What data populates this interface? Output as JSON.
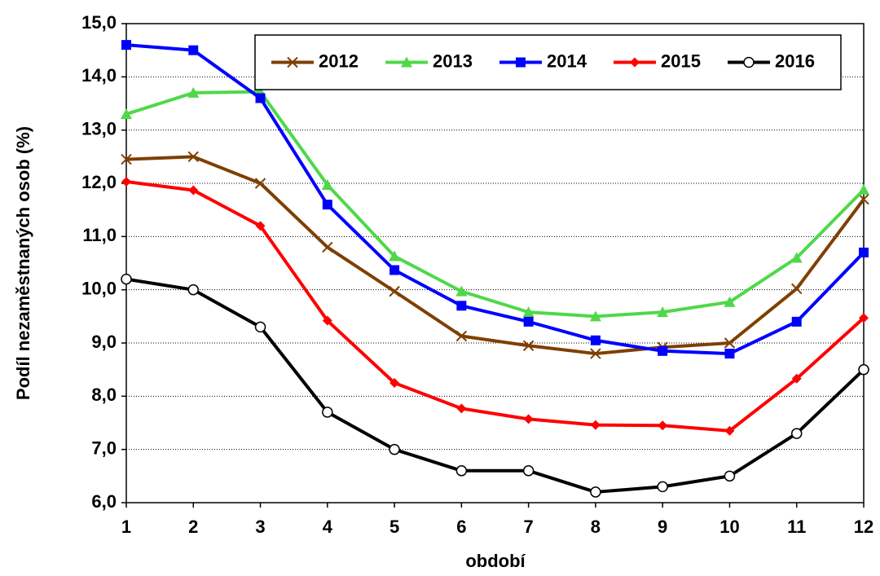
{
  "chart_data": {
    "type": "line",
    "x_label": "období",
    "y_label": "Podíl nezaměstnaných osob (%)",
    "x": [
      1,
      2,
      3,
      4,
      5,
      6,
      7,
      8,
      9,
      10,
      11,
      12
    ],
    "xlim": [
      1,
      12
    ],
    "xticks": [
      1,
      2,
      3,
      4,
      5,
      6,
      7,
      8,
      9,
      10,
      11,
      12
    ],
    "ylim": [
      6,
      15
    ],
    "yticks": [
      {
        "value": 6,
        "label": "6,0"
      },
      {
        "value": 7,
        "label": "7,0"
      },
      {
        "value": 8,
        "label": "8,0"
      },
      {
        "value": 9,
        "label": "9,0"
      },
      {
        "value": 10,
        "label": "10,0"
      },
      {
        "value": 11,
        "label": "11,0"
      },
      {
        "value": 12,
        "label": "12,0"
      },
      {
        "value": 13,
        "label": "13,0"
      },
      {
        "value": 14,
        "label": "14,0"
      },
      {
        "value": 15,
        "label": "15,0"
      }
    ],
    "grid": true,
    "legend": "top-right",
    "series": [
      {
        "name": "2012",
        "color": "#7f3f00",
        "marker": "x",
        "values": [
          12.45,
          12.5,
          12.0,
          10.8,
          9.97,
          9.13,
          8.95,
          8.8,
          8.92,
          9.0,
          10.02,
          11.7
        ]
      },
      {
        "name": "2013",
        "color": "#4fd84a",
        "marker": "triangle",
        "values": [
          13.3,
          13.7,
          13.72,
          11.97,
          10.63,
          9.97,
          9.58,
          9.5,
          9.58,
          9.77,
          10.6,
          11.88
        ]
      },
      {
        "name": "2014",
        "color": "#0000ff",
        "marker": "square",
        "values": [
          14.6,
          14.5,
          13.6,
          11.6,
          10.37,
          9.7,
          9.4,
          9.05,
          8.85,
          8.8,
          9.4,
          10.7
        ]
      },
      {
        "name": "2015",
        "color": "#ff0000",
        "marker": "diamond",
        "values": [
          12.03,
          11.87,
          11.2,
          9.42,
          8.25,
          7.77,
          7.57,
          7.46,
          7.45,
          7.35,
          8.33,
          9.47
        ]
      },
      {
        "name": "2016",
        "color": "#000000",
        "marker": "circle",
        "values": [
          10.2,
          10.0,
          9.3,
          7.7,
          7.0,
          6.6,
          6.6,
          6.2,
          6.3,
          6.5,
          7.3,
          8.5
        ]
      }
    ]
  }
}
